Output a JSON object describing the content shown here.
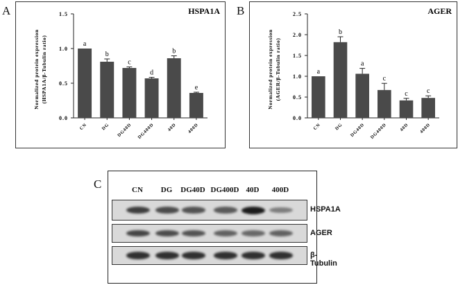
{
  "panels": {
    "a": "A",
    "b": "B",
    "c": "C"
  },
  "chart_data": [
    {
      "type": "bar",
      "title": "HSPA1A",
      "ylabel_line1": "Normalized protein expression",
      "ylabel_line2": "(HSPA1A/β-Tubulin ratio)",
      "categories": [
        "CN",
        "DG",
        "DG40D",
        "DG400D",
        "40D",
        "400D"
      ],
      "values": [
        1.0,
        0.81,
        0.72,
        0.57,
        0.86,
        0.36
      ],
      "errors": [
        0.0,
        0.04,
        0.015,
        0.015,
        0.035,
        0.01
      ],
      "letters": [
        "a",
        "b",
        "c",
        "d",
        "b",
        "e"
      ],
      "ylim": [
        0,
        1.5
      ],
      "yticks": [
        "0.0",
        "0.5",
        "1.0",
        "1.5"
      ],
      "bar_color": "#4a4a4a"
    },
    {
      "type": "bar",
      "title": "AGER",
      "ylabel_line1": "Normalized protein expression",
      "ylabel_line2": "(AGER/β-Tubulin ratio)",
      "categories": [
        "CN",
        "DG",
        "DG40D",
        "DG400D",
        "40D",
        "400D"
      ],
      "values": [
        1.0,
        1.82,
        1.06,
        0.67,
        0.42,
        0.48
      ],
      "errors": [
        0.0,
        0.13,
        0.13,
        0.16,
        0.05,
        0.05
      ],
      "letters": [
        "a",
        "b",
        "a",
        "c",
        "c",
        "c"
      ],
      "ylim": [
        0,
        2.5
      ],
      "yticks": [
        "0.0",
        "0.5",
        "1.0",
        "1.5",
        "2.0",
        "2.5"
      ],
      "bar_color": "#4a4a4a"
    }
  ],
  "blot": {
    "lanes": [
      "CN",
      "DG",
      "DG40D",
      "DG400D",
      "40D",
      "400D"
    ],
    "rows": [
      {
        "label": "HSPA1A",
        "intensity": [
          0.75,
          0.65,
          0.6,
          0.55,
          1.0,
          0.3
        ]
      },
      {
        "label": "AGER",
        "intensity": [
          0.7,
          0.65,
          0.6,
          0.5,
          0.45,
          0.5
        ]
      },
      {
        "label": "β-Tubulin",
        "intensity": [
          0.85,
          0.85,
          0.85,
          0.85,
          0.85,
          0.85
        ]
      }
    ]
  }
}
